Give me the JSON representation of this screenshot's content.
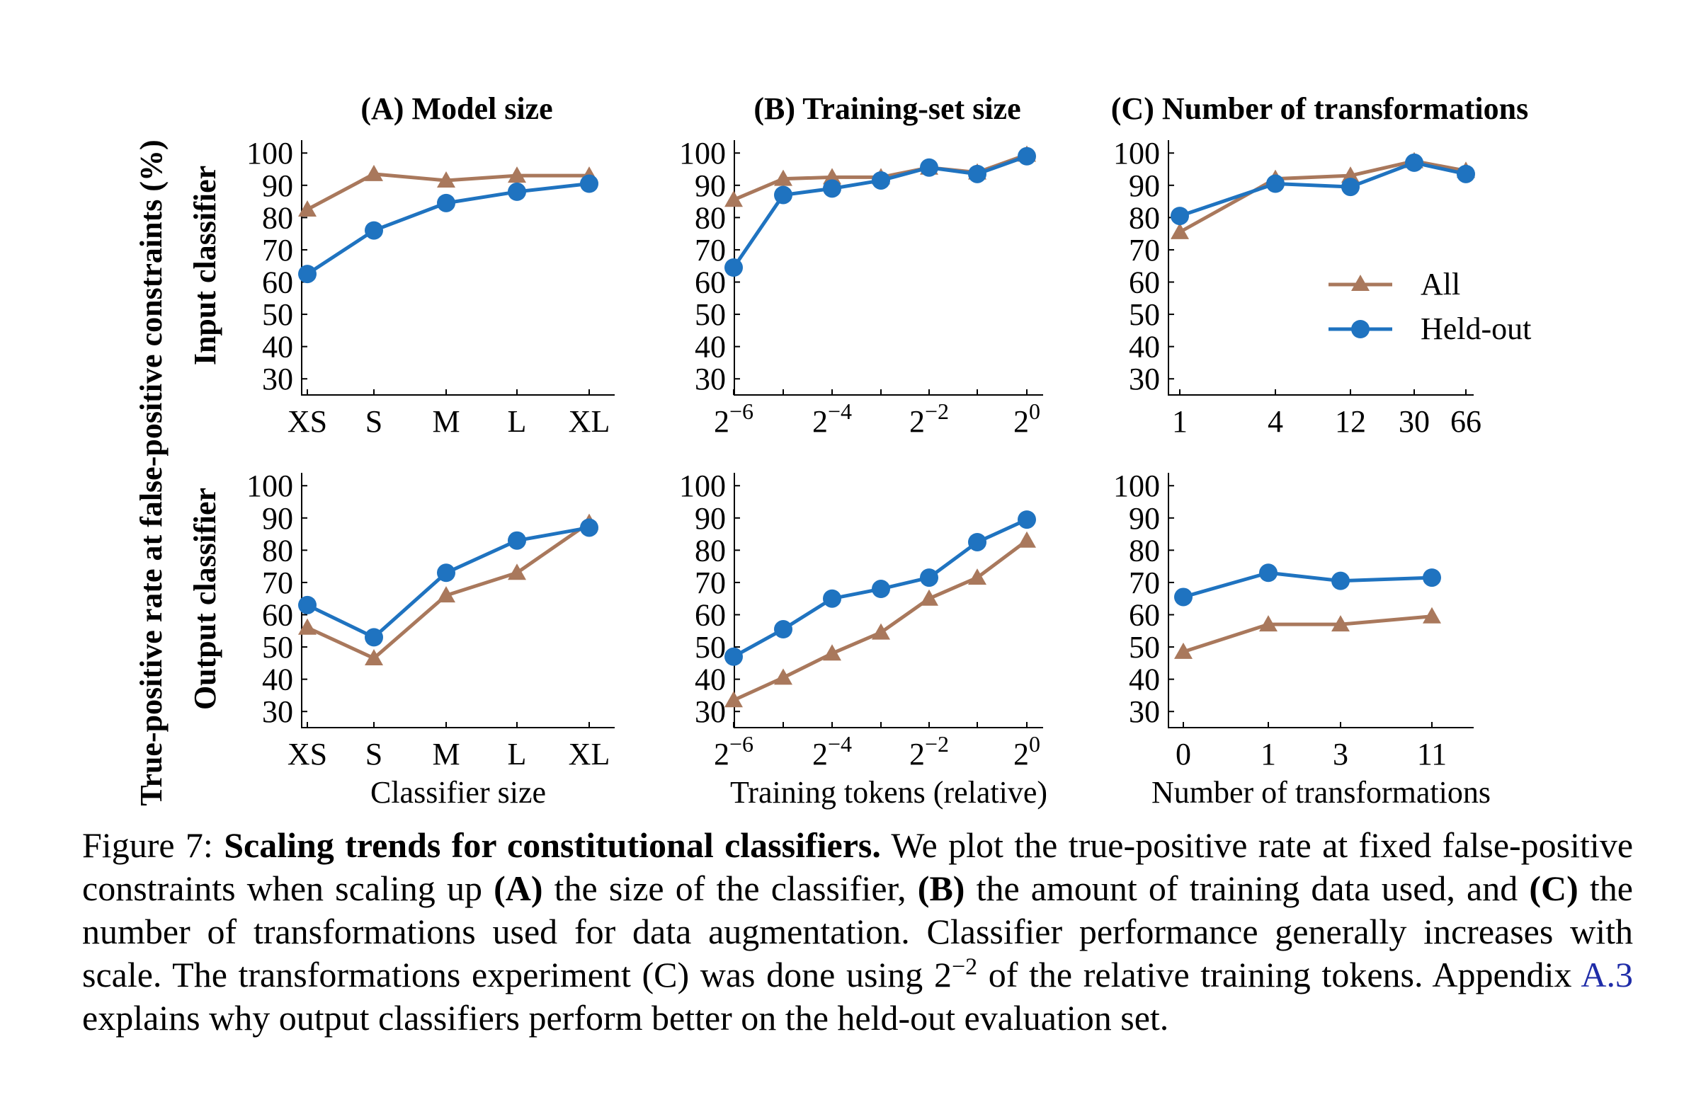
{
  "figure": {
    "y_axis_label": "True-positive rate at false-positive constraints (%)",
    "row_labels": [
      "Input classifier",
      "Output classifier"
    ],
    "legend": [
      {
        "label": "All",
        "marker": "triangle",
        "color": "#A9785C"
      },
      {
        "label": "Held-out",
        "marker": "circle",
        "color": "#1F73C0"
      }
    ],
    "colors": {
      "all": "#A9785C",
      "held_out": "#1F73C0"
    }
  },
  "chart_data": [
    {
      "type": "line",
      "title": "(A) Model size",
      "row": "Input classifier",
      "xlabel": "",
      "categories": [
        "XS",
        "S",
        "M",
        "L",
        "XL"
      ],
      "ylim": [
        25,
        104
      ],
      "yticks": [
        "30",
        "40",
        "50",
        "60",
        "70",
        "80",
        "90",
        "100"
      ],
      "series": [
        {
          "name": "All",
          "values": [
            82.5,
            93.5,
            91.5,
            93,
            93
          ]
        },
        {
          "name": "Held-out",
          "values": [
            62.5,
            76,
            84.5,
            88,
            90.5
          ]
        }
      ]
    },
    {
      "type": "line",
      "title": "(B) Training-set size",
      "row": "Input classifier",
      "xlabel": "",
      "x": [
        0.015625,
        0.03125,
        0.0625,
        0.125,
        0.25,
        0.5,
        1
      ],
      "xscale": "log2",
      "xticks": [
        0.015625,
        0.0625,
        0.25,
        1
      ],
      "xtick_labels": [
        {
          "base": "2",
          "exp": "−6"
        },
        {
          "base": "2",
          "exp": "−4"
        },
        {
          "base": "2",
          "exp": "−2"
        },
        {
          "base": "2",
          "exp": "0"
        }
      ],
      "ylim": [
        25,
        104
      ],
      "yticks": [
        "30",
        "40",
        "50",
        "60",
        "70",
        "80",
        "90",
        "100"
      ],
      "series": [
        {
          "name": "All",
          "values": [
            85.5,
            92,
            92.5,
            92.5,
            95.5,
            94,
            99.5
          ]
        },
        {
          "name": "Held-out",
          "values": [
            64.5,
            87,
            89,
            91.5,
            95.5,
            93.5,
            99
          ]
        }
      ]
    },
    {
      "type": "line",
      "title": "(C) Number of transformations",
      "row": "Input classifier",
      "xlabel": "",
      "categories": [
        "1",
        "4",
        "12",
        "30",
        "66"
      ],
      "ylim": [
        25,
        104
      ],
      "yticks": [
        "30",
        "40",
        "50",
        "60",
        "70",
        "80",
        "90",
        "100"
      ],
      "series": [
        {
          "name": "All",
          "values": [
            75.5,
            92,
            93,
            97.5,
            94.5
          ]
        },
        {
          "name": "Held-out",
          "values": [
            80.5,
            90.5,
            89.5,
            97,
            93.5
          ]
        }
      ]
    },
    {
      "type": "line",
      "title": "",
      "row": "Output classifier",
      "xlabel": "Classifier size",
      "categories": [
        "XS",
        "S",
        "M",
        "L",
        "XL"
      ],
      "ylim": [
        25,
        104
      ],
      "yticks": [
        "30",
        "40",
        "50",
        "60",
        "70",
        "80",
        "90",
        "100"
      ],
      "series": [
        {
          "name": "All",
          "values": [
            56,
            46.5,
            66,
            73,
            88.5
          ]
        },
        {
          "name": "Held-out",
          "values": [
            63,
            53,
            73,
            83,
            87
          ]
        }
      ]
    },
    {
      "type": "line",
      "title": "",
      "row": "Output classifier",
      "xlabel": "Training tokens (relative)",
      "x": [
        0.015625,
        0.03125,
        0.0625,
        0.125,
        0.25,
        0.5,
        1
      ],
      "xscale": "log2",
      "xticks": [
        0.015625,
        0.0625,
        0.25,
        1
      ],
      "xtick_labels": [
        {
          "base": "2",
          "exp": "−6"
        },
        {
          "base": "2",
          "exp": "−4"
        },
        {
          "base": "2",
          "exp": "−2"
        },
        {
          "base": "2",
          "exp": "0"
        }
      ],
      "ylim": [
        25,
        104
      ],
      "yticks": [
        "30",
        "40",
        "50",
        "60",
        "70",
        "80",
        "90",
        "100"
      ],
      "series": [
        {
          "name": "All",
          "values": [
            33.5,
            40.5,
            48,
            54.5,
            65,
            71.5,
            83
          ]
        },
        {
          "name": "Held-out",
          "values": [
            47,
            55.5,
            65,
            68,
            71.5,
            82.5,
            89.5
          ]
        }
      ]
    },
    {
      "type": "line",
      "title": "",
      "row": "Output classifier",
      "xlabel": "Number of transformations",
      "categories": [
        "0",
        "1",
        "3",
        "11"
      ],
      "ylim": [
        25,
        104
      ],
      "yticks": [
        "30",
        "40",
        "50",
        "60",
        "70",
        "80",
        "90",
        "100"
      ],
      "series": [
        {
          "name": "All",
          "values": [
            48.5,
            57,
            57,
            59.5
          ]
        },
        {
          "name": "Held-out",
          "values": [
            65.5,
            73,
            70.5,
            71.5
          ]
        }
      ]
    }
  ],
  "caption": {
    "prefix": "Figure 7: ",
    "bold_title": "Scaling trends for constitutional classifiers.",
    "text_1": " We plot the true-positive rate at fixed false-positive constraints when scaling up ",
    "A": "(A)",
    "text_2": " the size of the classifier, ",
    "B": "(B)",
    "text_3": " the amount of training data used, and ",
    "C": "(C)",
    "text_4": " the number of transformations used for data augmentation. Classifier performance generally increases with scale. The transformations experiment (C) was done using 2",
    "exp": "−2",
    "text_5": " of the relative training tokens. Appendix ",
    "ref": "A.3",
    "text_6": " explains why output classifiers perform better on the held-out evaluation set."
  }
}
